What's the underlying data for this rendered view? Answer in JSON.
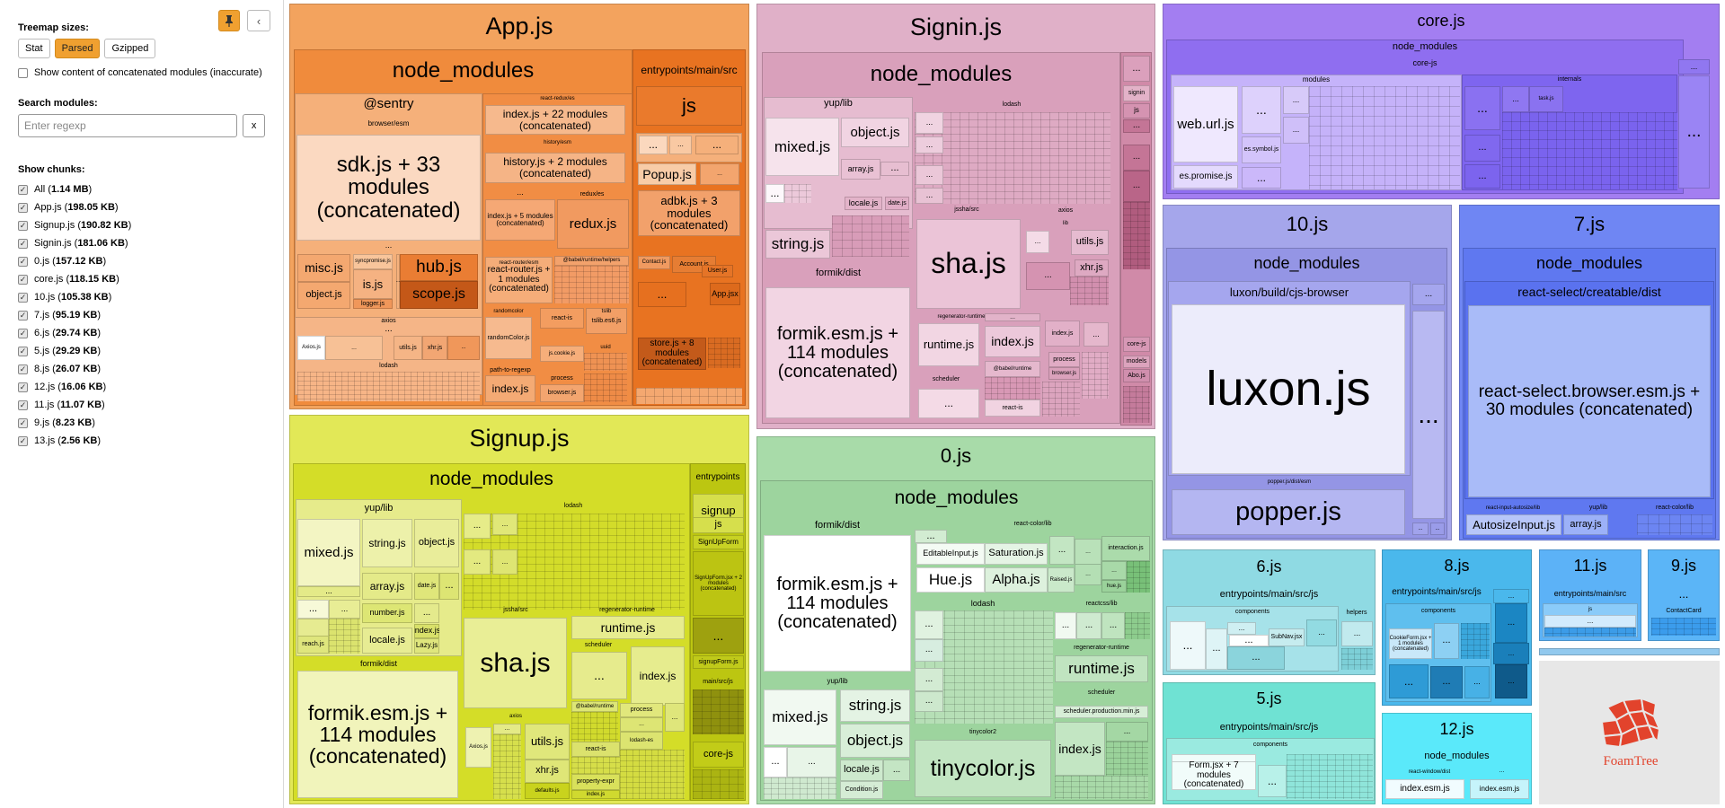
{
  "sidebar": {
    "treemap_sizes_label": "Treemap sizes:",
    "size_options": [
      "Stat",
      "Parsed",
      "Gzipped"
    ],
    "active_size": "Parsed",
    "show_concatenated_label": "Show content of concatenated modules (inaccurate)",
    "search_label": "Search modules:",
    "search_placeholder": "Enter regexp",
    "search_value": "",
    "clear_label": "x",
    "show_chunks_label": "Show chunks:",
    "chunks": [
      {
        "name": "All",
        "size": "1.14 MB"
      },
      {
        "name": "App.js",
        "size": "198.05 KB"
      },
      {
        "name": "Signup.js",
        "size": "190.82 KB"
      },
      {
        "name": "Signin.js",
        "size": "181.06 KB"
      },
      {
        "name": "0.js",
        "size": "157.12 KB"
      },
      {
        "name": "core.js",
        "size": "118.15 KB"
      },
      {
        "name": "10.js",
        "size": "105.38 KB"
      },
      {
        "name": "7.js",
        "size": "95.19 KB"
      },
      {
        "name": "6.js",
        "size": "29.74 KB"
      },
      {
        "name": "5.js",
        "size": "29.29 KB"
      },
      {
        "name": "8.js",
        "size": "26.07 KB"
      },
      {
        "name": "12.js",
        "size": "16.06 KB"
      },
      {
        "name": "11.js",
        "size": "11.07 KB"
      },
      {
        "name": "9.js",
        "size": "8.23 KB"
      },
      {
        "name": "13.js",
        "size": "2.56 KB"
      }
    ]
  },
  "treemap": {
    "app": {
      "title": "App.js",
      "node_modules": "node_modules",
      "sentry": "@sentry",
      "sentry_browser": "browser/esm",
      "sdk_concat": "sdk.js + 33 modules (concatenated)",
      "misc": "misc.js",
      "is": "is.js",
      "object": "object.js",
      "hub": "hub.js",
      "scope": "scope.js",
      "synchronous": "syncpromise.js",
      "logger": "logger.js",
      "axios": "axios",
      "axios_js": "Axios.js",
      "utils": "utils.js",
      "xhr": "xhr.js",
      "lodash": "lodash",
      "react_redux": "react-redux/es",
      "redux_concat": "index.js + 22 modules (concatenated)",
      "history_esm": "history/esm",
      "history_concat": "history.js + 2 modules (concatenated)",
      "index5_concat": "index.js + 5 modules (concatenated)",
      "redux_es": "redux/es",
      "redux": "redux.js",
      "react_router_dom": "react-router/esm",
      "react_router_concat": "react-router.js + 1 modules (concatenated)",
      "babel_helpers": "@babel/runtime/helpers",
      "randomcolor": "randomcolor",
      "randomcolor_js": "randomColor.js",
      "react_is": "react-is",
      "tslib": "tslib",
      "tslib_es6": "tslib.es6.js",
      "js_cookie": "js.cookie.js",
      "path_to_regexp": "path-to-regexp",
      "path_index": "index.js",
      "process": "process",
      "browser": "browser.js",
      "uuid": "uuid",
      "entry": "entrypoints/main/src",
      "entry_js": "js",
      "popup": "Popup.js",
      "adbk_concat": "adbk.js + 3 modules (concatenated)",
      "contact": "Contact.js",
      "account": "Account.js",
      "user": "User.js",
      "app_jsx": "App.jsx",
      "store_concat": "store.js + 8 modules (concatenated)",
      "dots": "..."
    },
    "signin": {
      "title": "Signin.js",
      "node_modules": "node_modules",
      "yup_lib": "yup/lib",
      "mixed": "mixed.js",
      "object": "object.js",
      "array": "array.js",
      "string": "string.js",
      "locale": "locale.js",
      "date": "date.js",
      "lodash": "lodash",
      "jssha": "jssha/src",
      "sha": "sha.js",
      "axios": "axios",
      "lib": "lib",
      "utils": "utils.js",
      "xhr": "xhr.js",
      "formik": "formik/dist",
      "formik_concat": "formik.esm.js + 114 modules (concatenated)",
      "regenerator": "regenerator-runtime",
      "runtime": "runtime.js",
      "index": "index.js",
      "babel_runtime": "@babel/runtime",
      "scheduler": "scheduler",
      "react_is": "react-is",
      "process": "process",
      "browser": "browser.js",
      "signin_src": "signin",
      "signin_js": "js",
      "core_js": "core-js",
      "models": "models",
      "abo": "Abo.js",
      "dots": "..."
    },
    "core": {
      "title": "core.js",
      "node_modules": "node_modules",
      "core_js": "core-js",
      "modules": "modules",
      "internals": "internals",
      "web_url": "web.url.js",
      "es_symbol": "es.symbol.js",
      "es_promise": "es.promise.js",
      "task": "task.js",
      "dots": "..."
    },
    "ten": {
      "title": "10.js",
      "node_modules": "node_modules",
      "luxon_path": "luxon/build/cjs-browser",
      "luxon": "luxon.js",
      "popper_path": "popper.js/dist/esm",
      "popper": "popper.js",
      "dots": "..."
    },
    "seven": {
      "title": "7.js",
      "node_modules": "node_modules",
      "rs_path": "react-select/creatable/dist",
      "rs_concat": "react-select.browser.esm.js + 30 modules (concatenated)",
      "autosize_path": "react-input-autosize/lib",
      "autosize": "AutosizeInput.js",
      "yup_lib": "yup/lib",
      "array": "array.js",
      "react_color": "react-color/lib",
      "dots": "..."
    },
    "signup": {
      "title": "Signup.js",
      "node_modules": "node_modules",
      "yup_lib": "yup/lib",
      "mixed": "mixed.js",
      "string": "string.js",
      "object": "object.js",
      "array": "array.js",
      "date": "date.js",
      "number": "number.js",
      "locale": "locale.js",
      "reach": "reach.js",
      "index": "index.js",
      "lazy": "Lazy.js",
      "lodash": "lodash",
      "jssha": "jssha/src",
      "sha": "sha.js",
      "regenerator": "regenerator-runtime",
      "runtime": "runtime.js",
      "scheduler": "scheduler",
      "formik": "formik/dist",
      "formik_concat": "formik.esm.js + 114 modules (concatenated)",
      "axios": "axios",
      "axios_js": "Axios.js",
      "utils": "utils.js",
      "xhr": "xhr.js",
      "defaults": "defaults.js",
      "babel_runtime": "@babel/runtime",
      "react_is": "react-is",
      "process": "process",
      "lodash_es": "lodash-es",
      "property_expr": "property-expr",
      "index_js": "index.js",
      "entrypoints": "entrypoints",
      "signup_src": "signup",
      "signup_js": "js",
      "signup_form": "SignUpForm",
      "signup_concat": "SignUpForm.jsx + 2 modules (concatenated)",
      "signup_form_js": "signupForm.js",
      "main_src": "main/src/js",
      "core_js": "core-js",
      "dots": "..."
    },
    "zero": {
      "title": "0.js",
      "node_modules": "node_modules",
      "formik": "formik/dist",
      "formik_concat": "formik.esm.js + 114 modules (concatenated)",
      "react_color": "react-color/lib",
      "editable": "EditableInput.js",
      "saturation": "Saturation.js",
      "interaction": "interaction.js",
      "hue": "Hue.js",
      "alpha": "Alpha.js",
      "raised": "Raised.js",
      "hue_js": "hue.js",
      "lodash": "lodash",
      "reactcss": "reactcss/lib",
      "regenerator": "regenerator-runtime",
      "runtime": "runtime.js",
      "scheduler": "scheduler",
      "scheduler_prod": "scheduler.production.min.js",
      "index": "index.js",
      "yup_lib": "yup/lib",
      "mixed": "mixed.js",
      "string": "string.js",
      "object": "object.js",
      "locale": "locale.js",
      "condition": "Condition.js",
      "tinycolor_dir": "tinycolor2",
      "tinycolor": "tinycolor.js",
      "dots": "..."
    },
    "six": {
      "title": "6.js",
      "entry": "entrypoints/main/src/js",
      "components": "components",
      "helpers": "helpers",
      "subnav": "SubNav.jsx",
      "dots": "..."
    },
    "five": {
      "title": "5.js",
      "entry": "entrypoints/main/src/js",
      "components": "components",
      "form_concat": "Form.jsx + 7 modules (concatenated)",
      "dots": "..."
    },
    "eight": {
      "title": "8.js",
      "entry": "entrypoints/main/src/js",
      "components": "components",
      "cookie_concat": "CookieForm.jsx + 1 modules (concatenated)",
      "dots": "..."
    },
    "eleven": {
      "title": "11.js",
      "entry": "entrypoints/main/src",
      "js": "js",
      "dots": "..."
    },
    "nine": {
      "title": "9.js",
      "dots": "...",
      "contact_card": "ContactCard"
    },
    "twelve": {
      "title": "12.js",
      "node_modules": "node_modules",
      "react_window": "react-window/dist",
      "index_esm": "index.esm.js",
      "dots": "..."
    },
    "logo_text": "FoamTree"
  }
}
